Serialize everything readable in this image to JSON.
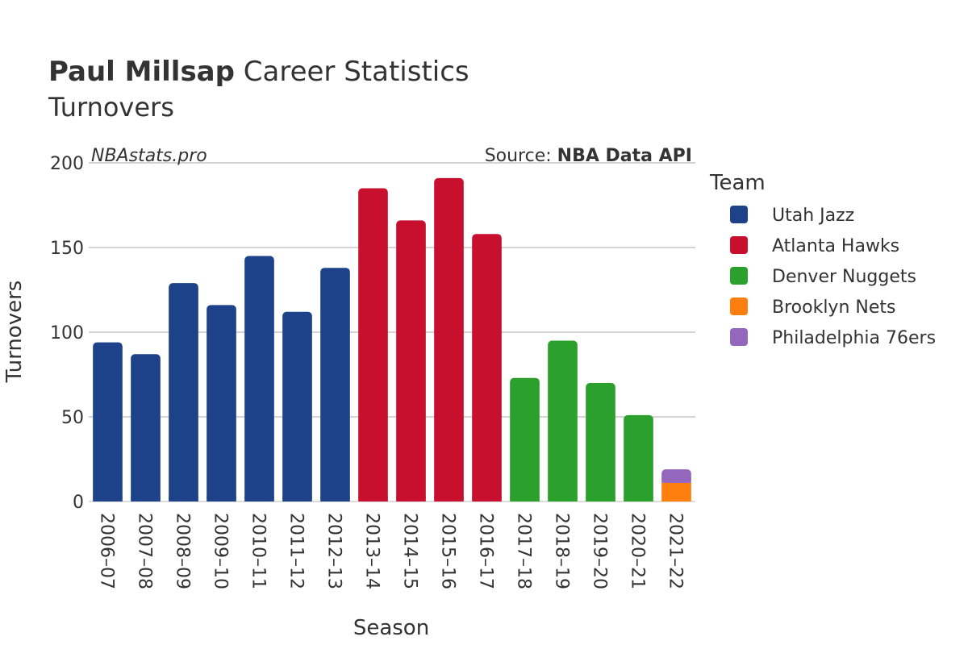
{
  "header": {
    "title_bold": "Paul Millsap",
    "title_rest": " Career Statistics",
    "subtitle": "Turnovers"
  },
  "watermark": "NBAstats.pro",
  "source": {
    "prefix": "Source: ",
    "name": "NBA Data API"
  },
  "legend": {
    "title": "Team"
  },
  "chart_data": {
    "type": "bar",
    "stacked": true,
    "xlabel": "Season",
    "ylabel": "Turnovers",
    "ylim": [
      0,
      200
    ],
    "yticks": [
      0,
      50,
      100,
      150,
      200
    ],
    "grid": true,
    "legend_position": "right",
    "categories": [
      "2006–07",
      "2007–08",
      "2008–09",
      "2009–10",
      "2010–11",
      "2011–12",
      "2012–13",
      "2013–14",
      "2014–15",
      "2015–16",
      "2016–17",
      "2017–18",
      "2018–19",
      "2019–20",
      "2020–21",
      "2021–22"
    ],
    "series": [
      {
        "name": "Utah Jazz",
        "color": "#1d428a",
        "values": [
          94,
          87,
          129,
          116,
          145,
          112,
          138,
          0,
          0,
          0,
          0,
          0,
          0,
          0,
          0,
          0
        ]
      },
      {
        "name": "Atlanta Hawks",
        "color": "#c8102e",
        "values": [
          0,
          0,
          0,
          0,
          0,
          0,
          0,
          185,
          166,
          191,
          158,
          0,
          0,
          0,
          0,
          0
        ]
      },
      {
        "name": "Denver Nuggets",
        "color": "#2ca02c",
        "values": [
          0,
          0,
          0,
          0,
          0,
          0,
          0,
          0,
          0,
          0,
          0,
          73,
          95,
          70,
          51,
          0
        ]
      },
      {
        "name": "Brooklyn Nets",
        "color": "#ff7f0e",
        "values": [
          0,
          0,
          0,
          0,
          0,
          0,
          0,
          0,
          0,
          0,
          0,
          0,
          0,
          0,
          0,
          11
        ]
      },
      {
        "name": "Philadelphia 76ers",
        "color": "#9467bd",
        "values": [
          0,
          0,
          0,
          0,
          0,
          0,
          0,
          0,
          0,
          0,
          0,
          0,
          0,
          0,
          0,
          8
        ]
      }
    ]
  }
}
